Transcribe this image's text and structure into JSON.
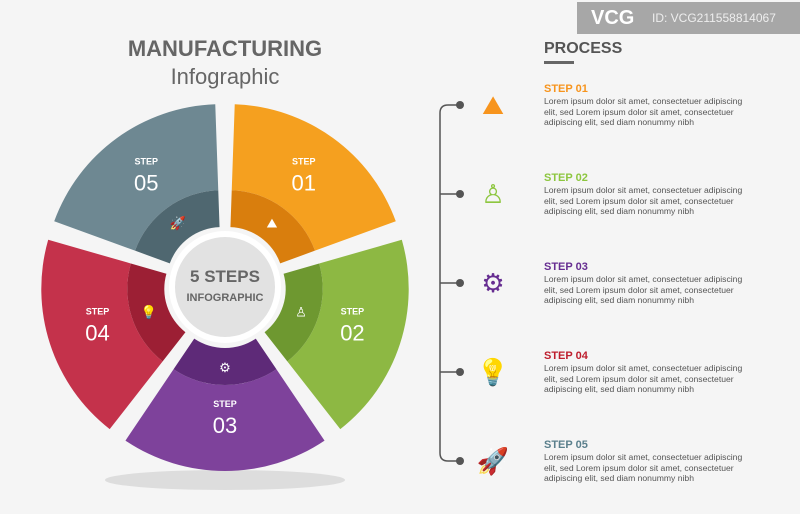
{
  "title": {
    "line1": "MANUFACTURING",
    "line2": "Infographic"
  },
  "center": {
    "line1": "5 STEPS",
    "line2": "INFOGRAPHIC"
  },
  "process_title": "PROCESS",
  "steps": [
    {
      "label": "STEP",
      "num": "01",
      "title": "STEP 01",
      "icon": "mountain-flag-icon",
      "color": "#f5a01f",
      "dark": "#d97e0d",
      "title_color": "#f7941d",
      "text": "Lorem ipsum dolor sit amet, consectetuer adipiscing elit, sed Lorem ipsum dolor sit amet, consectetuer adipiscing elit, sed diam nonummy nibh"
    },
    {
      "label": "STEP",
      "num": "02",
      "title": "STEP 02",
      "icon": "person-icon",
      "color": "#8db843",
      "dark": "#6e9830",
      "title_color": "#8dc63f",
      "text": "Lorem ipsum dolor sit amet, consectetuer adipiscing elit, sed Lorem ipsum dolor sit amet, consectetuer adipiscing elit, sed diam nonummy nibh"
    },
    {
      "label": "STEP",
      "num": "03",
      "title": "STEP 03",
      "icon": "hand-gear-icon",
      "color": "#7e429b",
      "dark": "#5e2a78",
      "title_color": "#662d91",
      "text": "Lorem ipsum dolor sit amet, consectetuer adipiscing elit, sed Lorem ipsum dolor sit amet, consectetuer adipiscing elit, sed diam nonummy nibh"
    },
    {
      "label": "STEP",
      "num": "04",
      "title": "STEP 04",
      "icon": "lightbulb-icon",
      "color": "#c4324b",
      "dark": "#9c1f34",
      "title_color": "#be1e2d",
      "text": "Lorem ipsum dolor sit amet, consectetuer adipiscing elit, sed Lorem ipsum dolor sit amet, consectetuer adipiscing elit, sed diam nonummy nibh"
    },
    {
      "label": "STEP",
      "num": "05",
      "title": "STEP 05",
      "icon": "rocket-icon",
      "color": "#6e8892",
      "dark": "#4f6770",
      "title_color": "#5a7f8c",
      "text": "Lorem ipsum dolor sit amet, consectetuer adipiscing elit, sed Lorem ipsum dolor sit amet, consectetuer adipiscing elit, sed diam nonummy nibh"
    }
  ],
  "watermark": {
    "logo": "VCG",
    "id": "ID: VCG211558814067"
  }
}
